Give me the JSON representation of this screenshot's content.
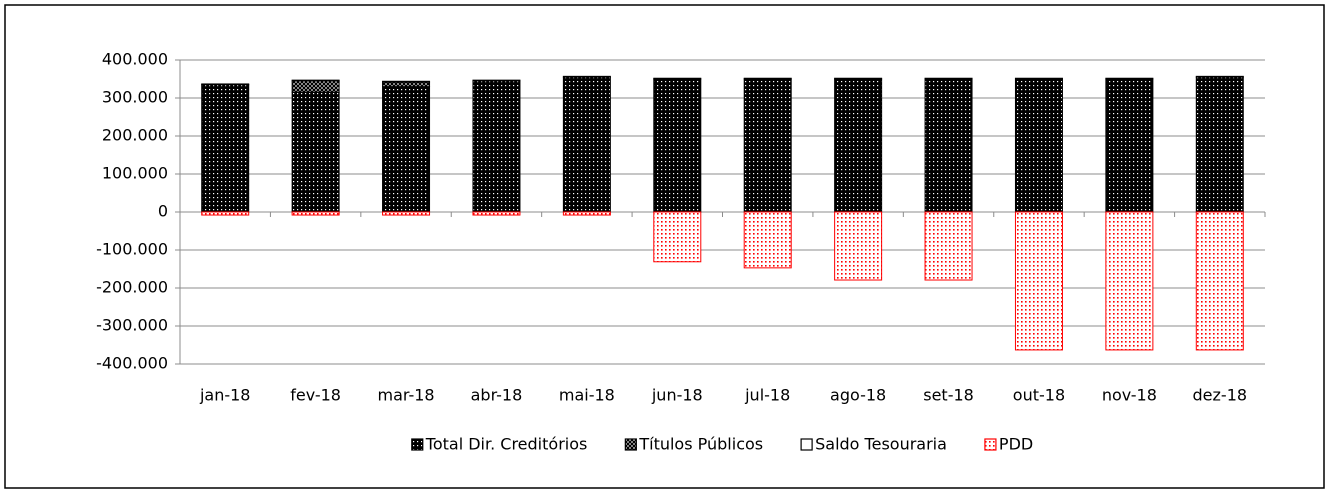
{
  "chart_data": {
    "type": "stacked-bar",
    "categories": [
      "jan-18",
      "fev-18",
      "mar-18",
      "abr-18",
      "mai-18",
      "jun-18",
      "jul-18",
      "ago-18",
      "set-18",
      "out-18",
      "nov-18",
      "dez-18"
    ],
    "series": [
      {
        "name": "Total Dir. Creditórios",
        "color": "#000000",
        "values": [
          335000,
          315000,
          330000,
          345000,
          355000,
          350000,
          350000,
          350000,
          350000,
          350000,
          350000,
          355000
        ]
      },
      {
        "name": "Títulos Públicos",
        "color": "#000000",
        "values": [
          0,
          30000,
          12000,
          0,
          0,
          0,
          0,
          0,
          0,
          0,
          0,
          0
        ]
      },
      {
        "name": "Saldo Tesouraria",
        "color": "#000000",
        "values": [
          2000,
          2000,
          2000,
          2000,
          2000,
          2000,
          2000,
          2000,
          2000,
          2000,
          2000,
          2000
        ]
      },
      {
        "name": "PDD",
        "color": "#ff0000",
        "values": [
          -8000,
          -8000,
          -8000,
          -8000,
          -8000,
          -131000,
          -147000,
          -179000,
          -179000,
          -363000,
          -363000,
          -363000
        ]
      }
    ],
    "ylim": [
      -400000,
      400000
    ],
    "yticks": [
      {
        "value": -400000,
        "label": "-400.000"
      },
      {
        "value": -300000,
        "label": "-300.000"
      },
      {
        "value": -200000,
        "label": "-200.000"
      },
      {
        "value": -100000,
        "label": "-100.000"
      },
      0,
      {
        "value": 100000,
        "label": "100.000"
      },
      {
        "value": 200000,
        "label": "200.000"
      },
      {
        "value": 300000,
        "label": "300.000"
      },
      {
        "value": 400000,
        "label": "400.000"
      }
    ],
    "grid": true,
    "legend": "bottom"
  }
}
